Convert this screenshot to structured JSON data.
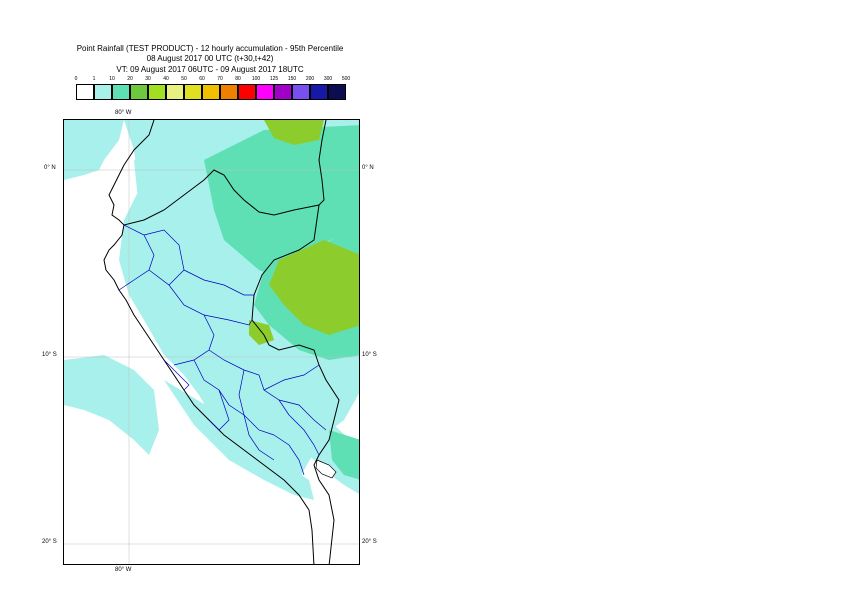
{
  "title": {
    "line1": "Point Rainfall (TEST PRODUCT) - 12 hourly accumulation - 95th Percentile",
    "line2": "08 August 2017 00 UTC (t+30,t+42)",
    "line3": "VT: 09 August 2017 06UTC - 09 August 2017 18UTC"
  },
  "legend": {
    "thresholds": [
      "0",
      "1",
      "10",
      "20",
      "30",
      "40",
      "50",
      "60",
      "70",
      "80",
      "100",
      "125",
      "150",
      "200",
      "300",
      "500"
    ],
    "colors": [
      "#ffffff",
      "#a8f0ec",
      "#5ee0b4",
      "#6cc83c",
      "#a0e020",
      "#e8f080",
      "#e0e020",
      "#f0c000",
      "#f08000",
      "#ff0000",
      "#ff00ff",
      "#a000c8",
      "#7850f0",
      "#1818a8",
      "#0c0c50"
    ]
  },
  "axes": {
    "lon_top": "80° W",
    "lon_bottom": "80° W",
    "lat_0_left": "0° N",
    "lat_0_right": "0° N",
    "lat_10_left": "10° S",
    "lat_10_right": "10° S",
    "lat_20_left": "20° S",
    "lat_20_right": "20° S"
  },
  "map": {
    "background_color": "#ffffff",
    "light_rain_color": "#a8f0ec",
    "moderate_rain_color": "#5ee0b4",
    "heavy_rain_color": "#8ccc2c",
    "coastline_color": "#000000",
    "region_border_color": "#0000c0"
  }
}
